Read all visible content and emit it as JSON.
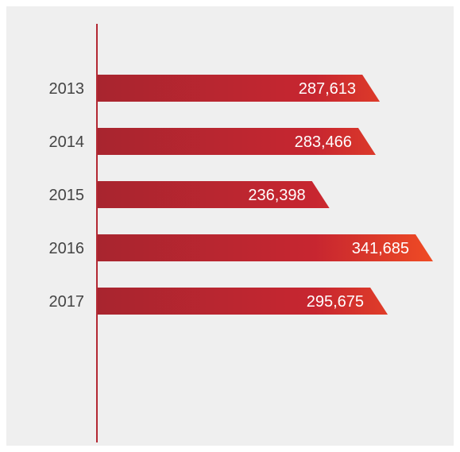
{
  "chart_data": {
    "type": "bar",
    "orientation": "horizontal",
    "title": "",
    "xlabel": "",
    "ylabel": "",
    "categories": [
      "2013",
      "2014",
      "2015",
      "2016",
      "2017"
    ],
    "values": [
      287613,
      283466,
      236398,
      341685,
      295675
    ],
    "value_labels": [
      "287,613",
      "283,466",
      "236,398",
      "341,685",
      "295,675"
    ],
    "xlim": [
      0,
      341685
    ],
    "grid": false,
    "legend": "none"
  },
  "colors": {
    "panel_background": "#efefef",
    "axis_line": "#b32833",
    "bar_gradient_start": "#a8252f",
    "bar_gradient_mid": "#c72630",
    "bar_gradient_end": "#ef4b24",
    "tick_text": "#444444",
    "value_text": "#ffffff"
  }
}
